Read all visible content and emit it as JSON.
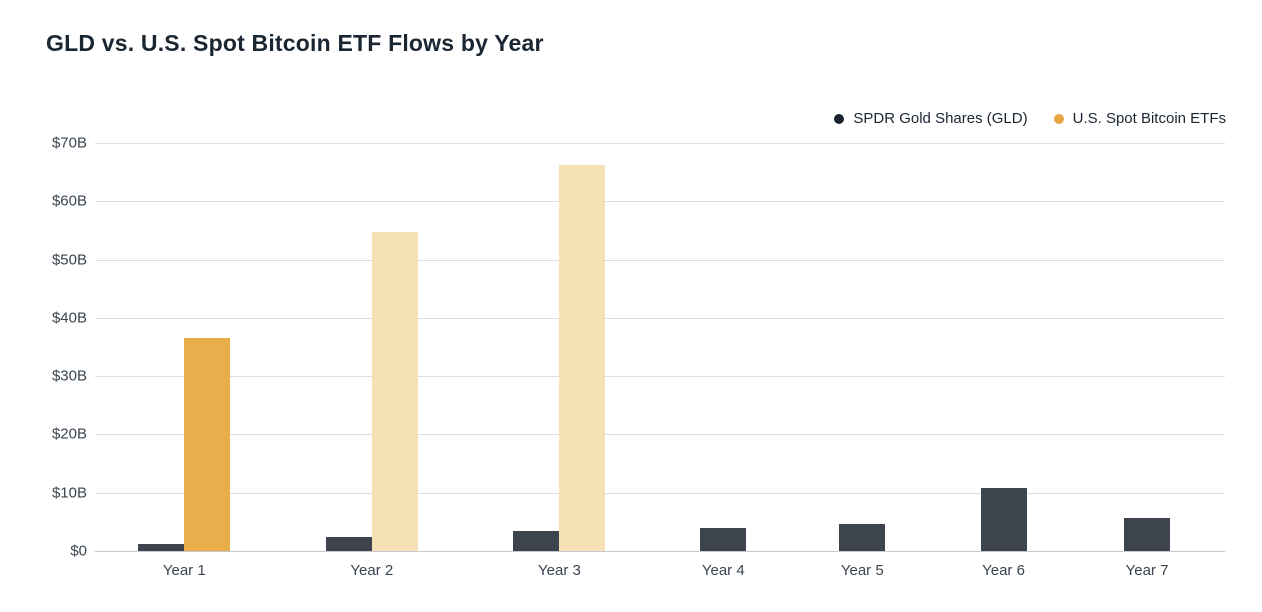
{
  "page": {
    "title": "GLD vs. U.S. Spot Bitcoin ETF Flows by Year"
  },
  "chart_data": {
    "type": "bar",
    "title": "GLD vs. U.S. Spot Bitcoin ETF Flows by Year",
    "categories": [
      "Year 1",
      "Year 2",
      "Year 3",
      "Year 4",
      "Year 5",
      "Year 6",
      "Year 7"
    ],
    "series": [
      {
        "name": "SPDR Gold Shares (GLD)",
        "color": "#3e444e",
        "legend_dot_color": "#19222e",
        "values": [
          1.2,
          2.4,
          3.5,
          4.0,
          4.6,
          10.8,
          5.6
        ]
      },
      {
        "name": "U.S. Spot Bitcoin ETFs",
        "color": "#e9ad4b",
        "legend_dot_color": "#e8a544",
        "projected_color": "#f5e1b5",
        "projected": [
          false,
          true,
          true,
          false,
          false,
          false,
          false
        ],
        "values": [
          36.5,
          54.7,
          66.2,
          null,
          null,
          null,
          null
        ]
      }
    ],
    "unit": "$B",
    "y_ticks": [
      "$70B",
      "$60B",
      "$50B",
      "$40B",
      "$30B",
      "$20B",
      "$10B",
      "$0"
    ],
    "y_tick_values": [
      70,
      60,
      50,
      40,
      30,
      20,
      10,
      0
    ],
    "ylim": [
      0,
      70
    ],
    "legend_position": "top-right",
    "grid": "horizontal",
    "colors": {
      "gridline": "#dddddd",
      "axis_line": "#c6c8ca",
      "tick_text": "#3a4450",
      "title_text": "#1b2633",
      "background": "#ffffff"
    }
  }
}
